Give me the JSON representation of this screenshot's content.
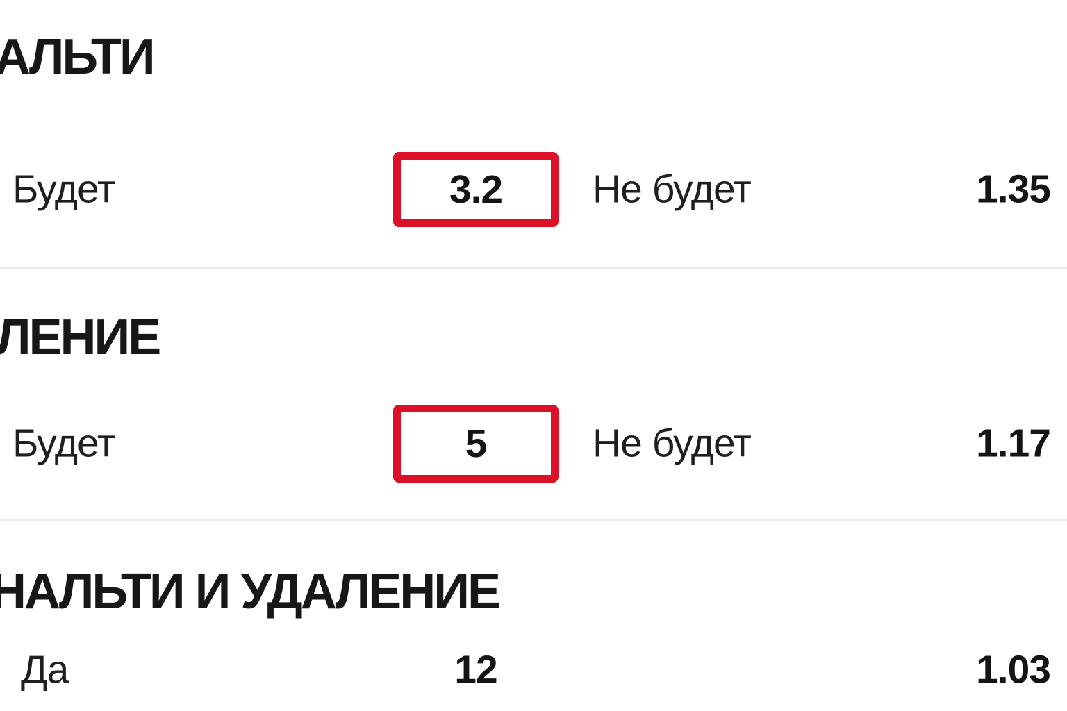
{
  "colors": {
    "background": "#ffffff",
    "accent_red": "#dc1026",
    "text_primary": "#1f1f1f",
    "odds_text": "#141414",
    "divider": "#ececec"
  },
  "sections": [
    {
      "heading": "АЛЬТИ",
      "row": {
        "label1": "Будет",
        "odds1": "3.2",
        "odds1_selected": true,
        "label2": "Не будет",
        "odds2": "1.35"
      }
    },
    {
      "heading": "ЛЕНИЕ",
      "row": {
        "label1": "Будет",
        "odds1": "5",
        "odds1_selected": true,
        "label2": "Не будет",
        "odds2": "1.17"
      }
    },
    {
      "heading": "НАЛЬТИ И УДАЛЕНИЕ",
      "row": {
        "label1": "Да",
        "odds1": "12",
        "odds1_selected": false,
        "odds2": "1.03"
      }
    }
  ]
}
